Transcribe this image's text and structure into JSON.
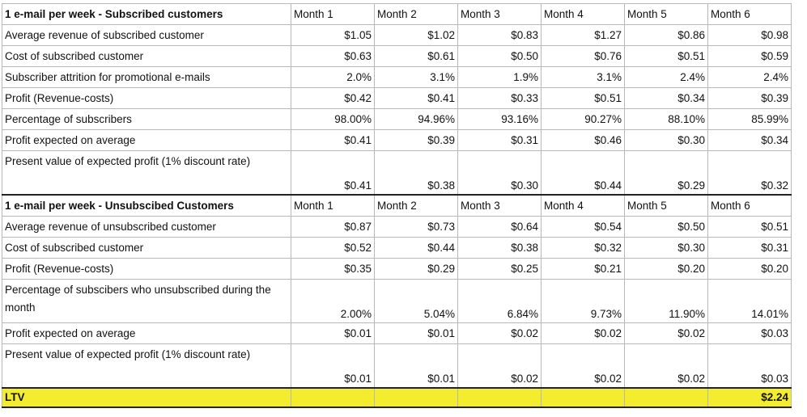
{
  "months": [
    "Month 1",
    "Month 2",
    "Month 3",
    "Month 4",
    "Month 5",
    "Month 6"
  ],
  "sections": [
    {
      "title": "1 e-mail per week - Subscribed customers",
      "rows": [
        {
          "label": "Average revenue of subscribed customer",
          "values": [
            "$1.05",
            "$1.02",
            "$0.83",
            "$1.27",
            "$0.86",
            "$0.98"
          ]
        },
        {
          "label": "Cost of subscribed customer",
          "values": [
            "$0.63",
            "$0.61",
            "$0.50",
            "$0.76",
            "$0.51",
            "$0.59"
          ]
        },
        {
          "label": "Subscriber attrition for promotional e-mails",
          "values": [
            "2.0%",
            "3.1%",
            "1.9%",
            "3.1%",
            "2.4%",
            "2.4%"
          ]
        },
        {
          "label": "Profit (Revenue-costs)",
          "values": [
            "$0.42",
            "$0.41",
            "$0.33",
            "$0.51",
            "$0.34",
            "$0.39"
          ]
        },
        {
          "label": "Percentage of subscribers",
          "values": [
            "98.00%",
            "94.96%",
            "93.16%",
            "90.27%",
            "88.10%",
            "85.99%"
          ]
        },
        {
          "label": "Profit expected on average",
          "values": [
            "$0.41",
            "$0.39",
            "$0.31",
            "$0.46",
            "$0.30",
            "$0.34"
          ]
        },
        {
          "label": "Present value of expected profit (1% discount rate)",
          "values": [
            "$0.41",
            "$0.38",
            "$0.30",
            "$0.44",
            "$0.29",
            "$0.32"
          ],
          "tall": true
        }
      ]
    },
    {
      "title": "1 e-mail per week - Unsubscibed Customers",
      "rows": [
        {
          "label": "Average revenue of unsubscribed customer",
          "values": [
            "$0.87",
            "$0.73",
            "$0.64",
            "$0.54",
            "$0.50",
            "$0.51"
          ]
        },
        {
          "label": "Cost of subscribed customer",
          "values": [
            "$0.52",
            "$0.44",
            "$0.38",
            "$0.32",
            "$0.30",
            "$0.31"
          ]
        },
        {
          "label": "Profit (Revenue-costs)",
          "values": [
            "$0.35",
            "$0.29",
            "$0.25",
            "$0.21",
            "$0.20",
            "$0.20"
          ]
        },
        {
          "label": "Percentage of subscibers who unsubscribed during the month",
          "values": [
            "2.00%",
            "5.04%",
            "6.84%",
            "9.73%",
            "11.90%",
            "14.01%"
          ],
          "tall": true
        },
        {
          "label": "Profit expected on average",
          "values": [
            "$0.01",
            "$0.01",
            "$0.02",
            "$0.02",
            "$0.02",
            "$0.03"
          ]
        },
        {
          "label": "Present value of expected profit (1% discount rate)",
          "values": [
            "$0.01",
            "$0.01",
            "$0.02",
            "$0.02",
            "$0.02",
            "$0.03"
          ],
          "tall": true
        }
      ]
    }
  ],
  "ltv": {
    "label": "LTV",
    "value": "$2.24"
  },
  "colors": {
    "highlight": "#f4ec2e"
  }
}
